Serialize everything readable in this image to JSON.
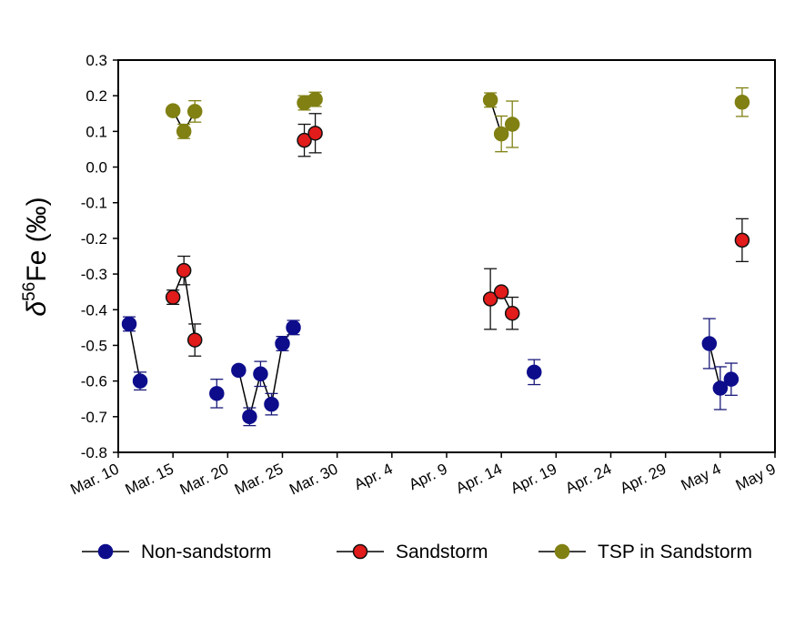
{
  "chart_data": {
    "type": "scatter",
    "ylabel_parts": [
      "δ",
      "56",
      "Fe (‰)"
    ],
    "ylim": [
      -0.8,
      0.3
    ],
    "yticks": [
      -0.8,
      -0.7,
      -0.6,
      -0.5,
      -0.4,
      -0.3,
      -0.2,
      -0.1,
      0.0,
      0.1,
      0.2,
      0.3
    ],
    "ytick_labels": [
      "-0.8",
      "-0.7",
      "-0.6",
      "-0.5",
      "-0.4",
      "-0.3",
      "-0.2",
      "-0.1",
      "0.0",
      "0.1",
      "0.2",
      "0.3"
    ],
    "xlim": [
      "Mar. 10",
      "May 9"
    ],
    "xticks": [
      "2012-03-10",
      "2012-03-15",
      "2012-03-20",
      "2012-03-25",
      "2012-03-30",
      "2012-04-04",
      "2012-04-09",
      "2012-04-14",
      "2012-04-19",
      "2012-04-24",
      "2012-04-29",
      "2012-05-04",
      "2012-05-09"
    ],
    "xtick_labels": [
      "Mar. 10",
      "Mar. 15",
      "Mar. 20",
      "Mar. 25",
      "Mar. 30",
      "Apr. 4",
      "Apr. 9",
      "Apr. 14",
      "Apr. 19",
      "Apr. 24",
      "Apr. 29",
      "May 4",
      "May 9"
    ],
    "grid": false,
    "legend_position": "bottom",
    "series": [
      {
        "name": "Non-sandstorm",
        "color": "#0d0d8c",
        "stroke": "#0d0d8c",
        "errcolor": "#1a1a7a",
        "points": [
          {
            "x": "2012-03-11",
            "y": -0.44,
            "err": 0.02
          },
          {
            "x": "2012-03-12",
            "y": -0.6,
            "err": 0.025
          },
          {
            "x": "2012-03-19",
            "y": -0.635,
            "err": 0.04
          },
          {
            "x": "2012-03-21",
            "y": -0.57,
            "err": 0.0
          },
          {
            "x": "2012-03-22",
            "y": -0.7,
            "err": 0.025
          },
          {
            "x": "2012-03-23",
            "y": -0.58,
            "err": 0.035
          },
          {
            "x": "2012-03-24",
            "y": -0.665,
            "err": 0.03
          },
          {
            "x": "2012-03-25",
            "y": -0.495,
            "err": 0.02
          },
          {
            "x": "2012-03-26",
            "y": -0.45,
            "err": 0.02
          },
          {
            "x": "2012-04-17",
            "y": -0.575,
            "err": 0.035
          },
          {
            "x": "2012-05-03",
            "y": -0.495,
            "err": 0.07
          },
          {
            "x": "2012-05-04",
            "y": -0.62,
            "err": 0.06
          },
          {
            "x": "2012-05-05",
            "y": -0.595,
            "err": 0.045
          }
        ],
        "connect": [
          [
            0,
            1
          ],
          [
            3,
            4
          ],
          [
            4,
            5
          ],
          [
            5,
            6
          ],
          [
            6,
            7
          ],
          [
            7,
            8
          ],
          [
            10,
            11
          ],
          [
            11,
            12
          ]
        ]
      },
      {
        "name": "Sandstorm",
        "color": "#e21b1b",
        "stroke": "#111111",
        "errcolor": "#111111",
        "points": [
          {
            "x": "2012-03-15",
            "y": -0.365,
            "err": 0.02
          },
          {
            "x": "2012-03-16",
            "y": -0.29,
            "err": 0.04
          },
          {
            "x": "2012-03-17",
            "y": -0.485,
            "err": 0.045
          },
          {
            "x": "2012-03-27",
            "y": 0.075,
            "err": 0.045
          },
          {
            "x": "2012-03-28",
            "y": 0.095,
            "err": 0.055
          },
          {
            "x": "2012-04-13",
            "y": -0.37,
            "err": 0.085
          },
          {
            "x": "2012-04-14",
            "y": -0.35,
            "err": 0.0
          },
          {
            "x": "2012-04-15",
            "y": -0.41,
            "err": 0.045
          },
          {
            "x": "2012-05-06",
            "y": -0.205,
            "err": 0.06
          }
        ],
        "connect": [
          [
            0,
            1
          ],
          [
            1,
            2
          ],
          [
            3,
            4
          ],
          [
            5,
            6
          ],
          [
            6,
            7
          ]
        ]
      },
      {
        "name": "TSP in Sandstorm",
        "color": "#808013",
        "stroke": "#808013",
        "errcolor": "#808013",
        "points": [
          {
            "x": "2012-03-15",
            "y": 0.158,
            "err": 0.0
          },
          {
            "x": "2012-03-16",
            "y": 0.1,
            "err": 0.02
          },
          {
            "x": "2012-03-17",
            "y": 0.156,
            "err": 0.03
          },
          {
            "x": "2012-03-27",
            "y": 0.18,
            "err": 0.02
          },
          {
            "x": "2012-03-28",
            "y": 0.19,
            "err": 0.02
          },
          {
            "x": "2012-04-13",
            "y": 0.188,
            "err": 0.02
          },
          {
            "x": "2012-04-14",
            "y": 0.093,
            "err": 0.05
          },
          {
            "x": "2012-04-15",
            "y": 0.12,
            "err": 0.065
          },
          {
            "x": "2012-05-06",
            "y": 0.182,
            "err": 0.04
          }
        ],
        "connect": [
          [
            0,
            1
          ],
          [
            1,
            2
          ],
          [
            3,
            4
          ],
          [
            5,
            6
          ],
          [
            6,
            7
          ]
        ]
      }
    ]
  }
}
